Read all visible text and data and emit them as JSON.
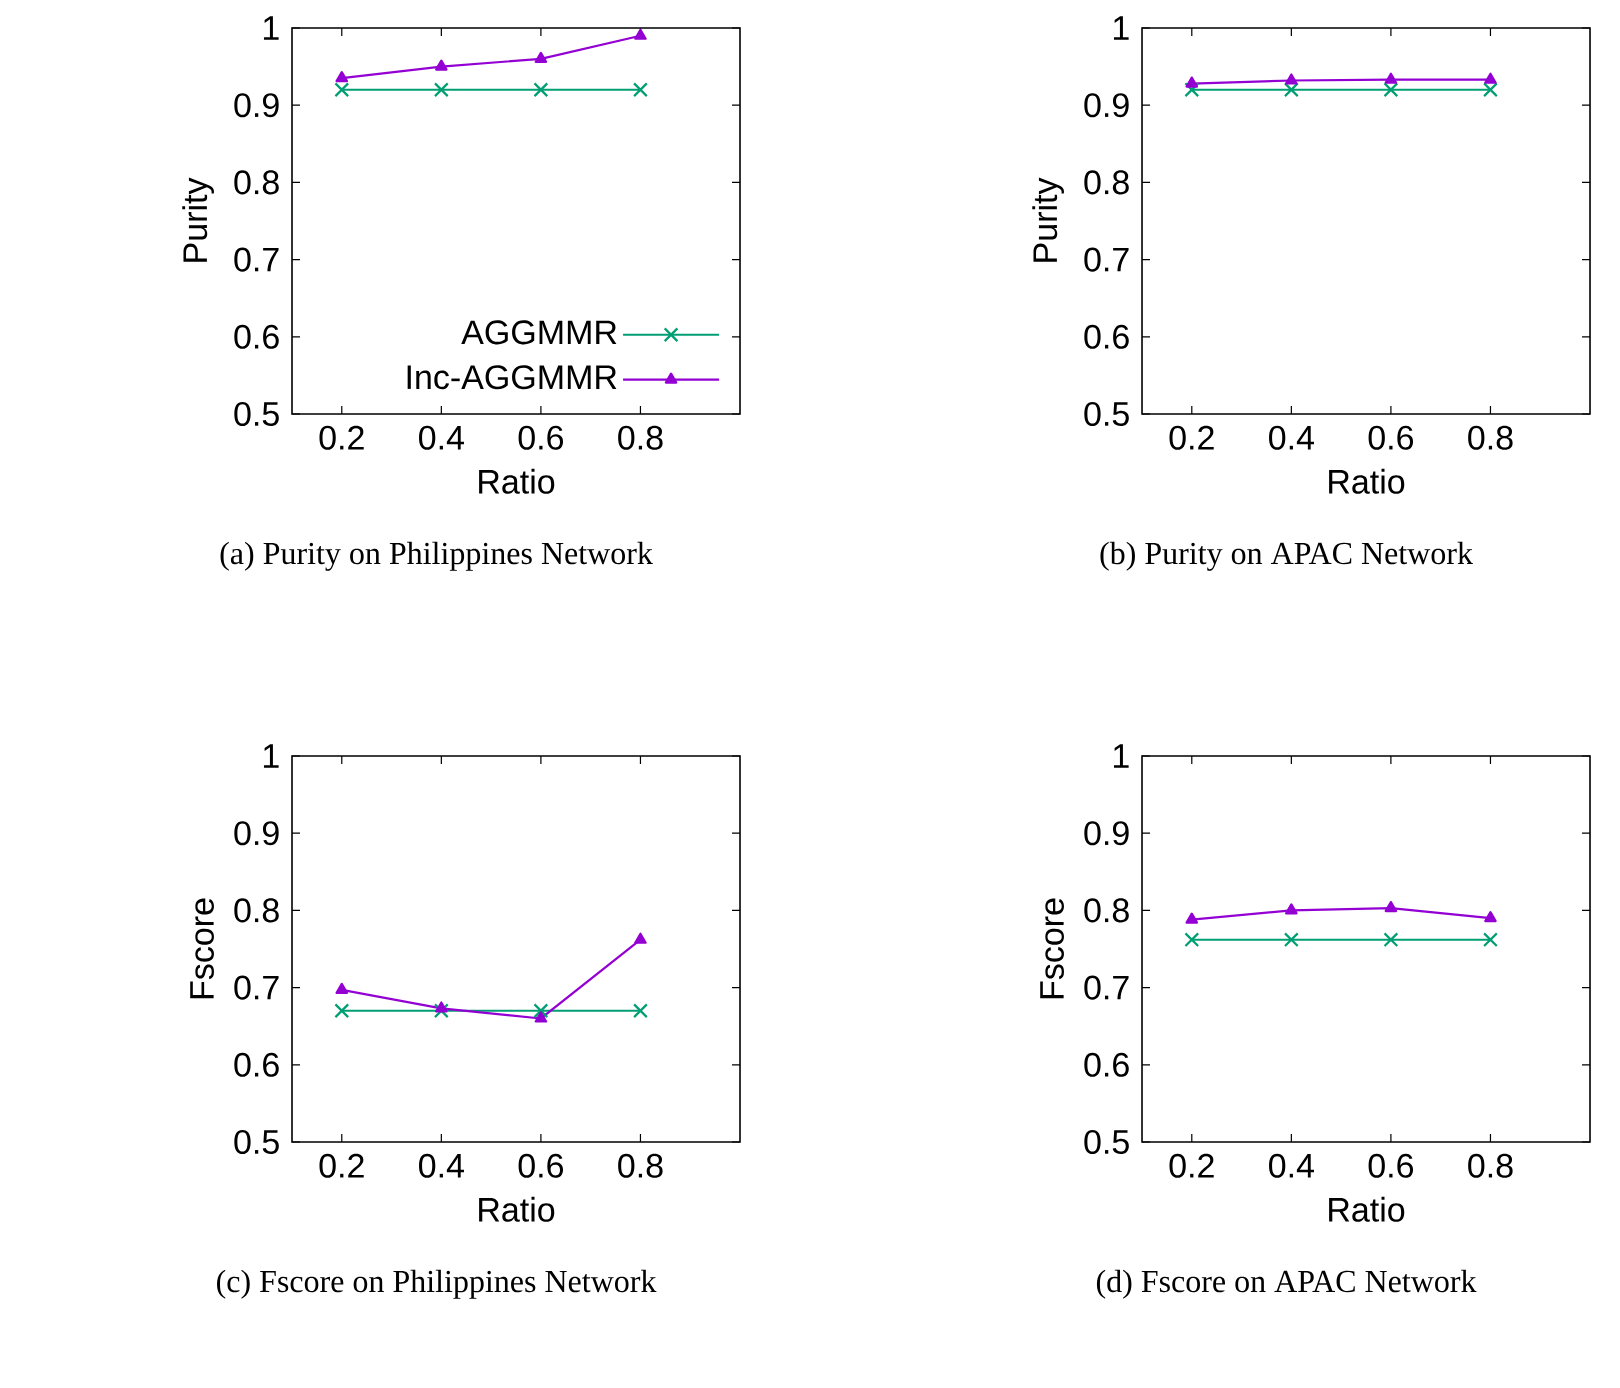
{
  "chart_data": [
    {
      "type": "line",
      "x": [
        0.2,
        0.4,
        0.6,
        0.8
      ],
      "xlim": [
        0.1,
        1
      ],
      "xticks": [
        0.2,
        0.4,
        0.6,
        0.8
      ],
      "ylim": [
        0.5,
        1
      ],
      "yticks": [
        0.5,
        0.6,
        0.7,
        0.8,
        0.9,
        1
      ],
      "xlabel": "Ratio",
      "ylabel": "Purity",
      "legend": "bottom right",
      "grid": false,
      "annotations": [
        "(a) Purity on Philippines Network"
      ],
      "series": [
        {
          "name": "AGGMMR",
          "color": "#009e73",
          "marker": "cross",
          "values": [
            0.92,
            0.92,
            0.92,
            0.92
          ]
        },
        {
          "name": "Inc-AGGMMR",
          "color": "#9400d3",
          "marker": "triangle",
          "values": [
            0.935,
            0.95,
            0.96,
            0.99
          ]
        }
      ]
    },
    {
      "type": "line",
      "x": [
        0.2,
        0.4,
        0.6,
        0.8
      ],
      "xlim": [
        0.1,
        1
      ],
      "xticks": [
        0.2,
        0.4,
        0.6,
        0.8
      ],
      "ylim": [
        0.5,
        1
      ],
      "yticks": [
        0.5,
        0.6,
        0.7,
        0.8,
        0.9,
        1
      ],
      "xlabel": "Ratio",
      "ylabel": "Purity",
      "grid": false,
      "annotations": [
        "(b) Purity on APAC Network"
      ],
      "series": [
        {
          "color": "#009e73",
          "marker": "cross",
          "values": [
            0.92,
            0.92,
            0.92,
            0.92
          ]
        },
        {
          "color": "#9400d3",
          "marker": "triangle",
          "values": [
            0.928,
            0.932,
            0.933,
            0.933
          ]
        }
      ]
    },
    {
      "type": "line",
      "x": [
        0.2,
        0.4,
        0.6,
        0.8
      ],
      "xlim": [
        0.1,
        1
      ],
      "xticks": [
        0.2,
        0.4,
        0.6,
        0.8
      ],
      "ylim": [
        0.5,
        1
      ],
      "yticks": [
        0.5,
        0.6,
        0.7,
        0.8,
        0.9,
        1
      ],
      "xlabel": "Ratio",
      "ylabel": "Fscore",
      "grid": false,
      "annotations": [
        "(c) Fscore on Philippines Network"
      ],
      "series": [
        {
          "color": "#009e73",
          "marker": "cross",
          "values": [
            0.67,
            0.67,
            0.67,
            0.67
          ]
        },
        {
          "color": "#9400d3",
          "marker": "triangle",
          "values": [
            0.697,
            0.673,
            0.66,
            0.762
          ]
        }
      ]
    },
    {
      "type": "line",
      "x": [
        0.2,
        0.4,
        0.6,
        0.8
      ],
      "xlim": [
        0.1,
        1
      ],
      "xticks": [
        0.2,
        0.4,
        0.6,
        0.8
      ],
      "ylim": [
        0.5,
        1
      ],
      "yticks": [
        0.5,
        0.6,
        0.7,
        0.8,
        0.9,
        1
      ],
      "xlabel": "Ratio",
      "ylabel": "Fscore",
      "grid": false,
      "annotations": [
        "(d) Fscore on APAC Network"
      ],
      "series": [
        {
          "color": "#009e73",
          "marker": "cross",
          "values": [
            0.762,
            0.762,
            0.762,
            0.762
          ]
        },
        {
          "color": "#9400d3",
          "marker": "triangle",
          "values": [
            0.788,
            0.8,
            0.803,
            0.79
          ]
        }
      ]
    }
  ]
}
